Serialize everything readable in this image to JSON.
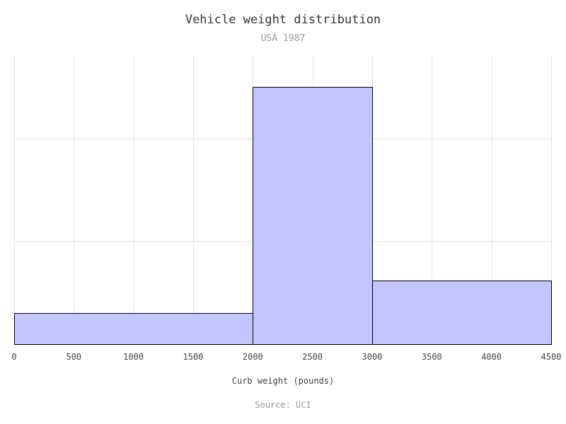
{
  "chart_data": {
    "type": "bar",
    "title": "Vehicle weight distribution",
    "subtitle": "USA 1987",
    "xlabel": "Curb weight (pounds)",
    "ylabel": "",
    "source": "Source: UCI",
    "bins": [
      {
        "from": 0,
        "to": 2000,
        "value": 3
      },
      {
        "from": 2000,
        "to": 3000,
        "value": 25
      },
      {
        "from": 3000,
        "to": 4500,
        "value": 6.2
      }
    ],
    "xlim": [
      0,
      4500
    ],
    "ylim": [
      0,
      28
    ],
    "x_ticks": [
      0,
      500,
      1000,
      1500,
      2000,
      2500,
      3000,
      3500,
      4000,
      4500
    ],
    "y_gridlines": [
      0,
      10,
      20
    ],
    "y_tick_labels_shown": false,
    "grid": true,
    "legend": "none",
    "colors": {
      "bar_fill": "#c4c4ff",
      "bar_stroke": "#000000",
      "grid": "#e3e7ec"
    }
  }
}
